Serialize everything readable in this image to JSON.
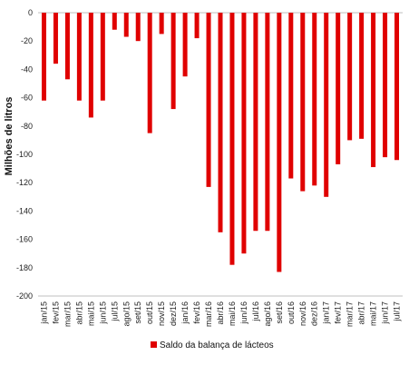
{
  "chart_data": {
    "type": "bar",
    "title": "",
    "xlabel": "",
    "ylabel": "Milhões de litros",
    "ylim": [
      -200,
      0
    ],
    "yticks": [
      0,
      -20,
      -40,
      -60,
      -80,
      -100,
      -120,
      -140,
      -160,
      -180,
      -200
    ],
    "grid": false,
    "legend_position": "bottom",
    "categories": [
      "jan/15",
      "fev/15",
      "mar/15",
      "abr/15",
      "mai/15",
      "jun/15",
      "jul/15",
      "ago/15",
      "set/15",
      "out/15",
      "nov/15",
      "dez/15",
      "jan/16",
      "fev/16",
      "mar/16",
      "abr/16",
      "mai/16",
      "jun/16",
      "jul/16",
      "ago/16",
      "set/16",
      "out/16",
      "nov/16",
      "dez/16",
      "jan/17",
      "fev/17",
      "mar/17",
      "abr/17",
      "mai/17",
      "jun/17",
      "jul/17"
    ],
    "series": [
      {
        "name": "Saldo da balança de lácteos",
        "color": "#e00000",
        "values": [
          -62,
          -36,
          -47,
          -62,
          -74,
          -62,
          -12,
          -17,
          -20,
          -85,
          -15,
          -68,
          -45,
          -18,
          -123,
          -155,
          -178,
          -170,
          -154,
          -154,
          -183,
          -117,
          -126,
          -122,
          -130,
          -107,
          -90,
          -89,
          -109,
          -102,
          -104
        ]
      }
    ]
  }
}
